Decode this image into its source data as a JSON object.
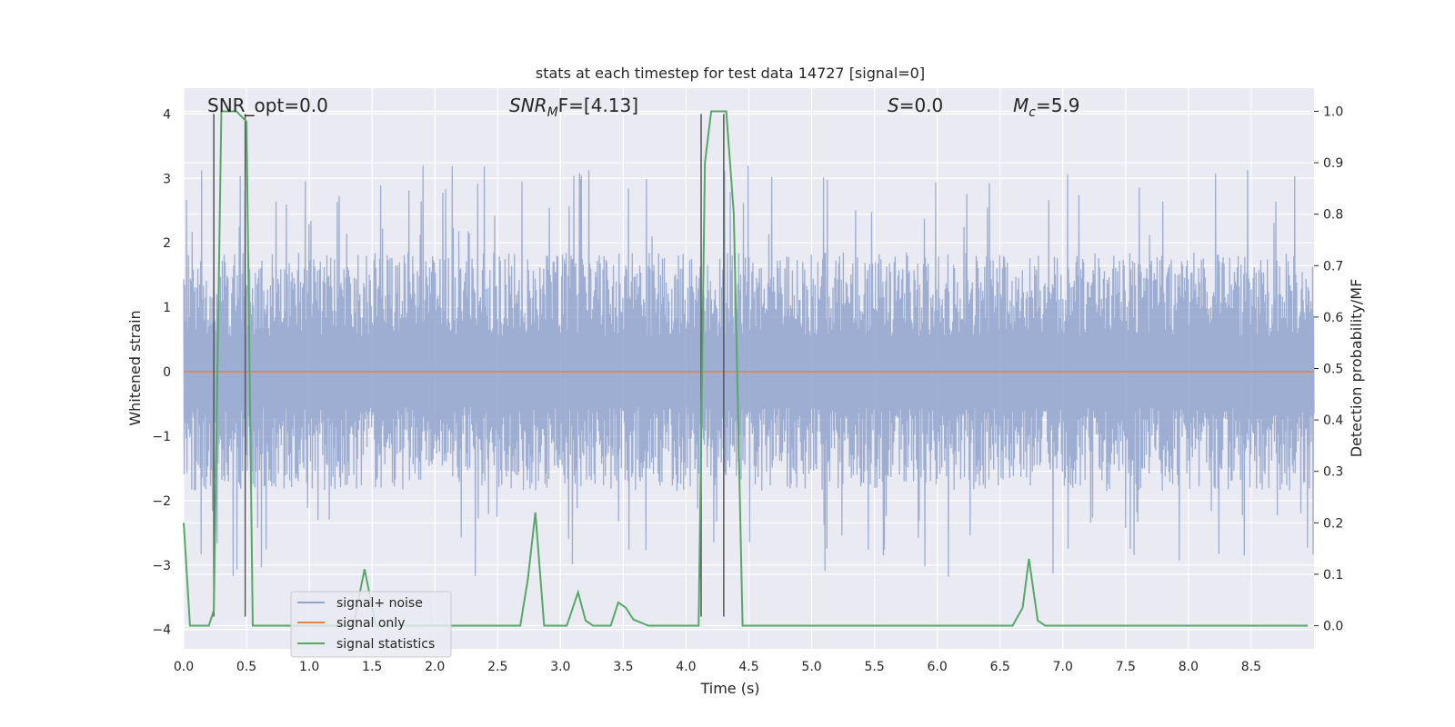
{
  "chart_data": {
    "type": "line",
    "title": "stats at each timestep for test data 14727 [signal=0]",
    "xlabel": "Time (s)",
    "ylabel": "Whitened strain",
    "ylabel_right": "Detection probability/MF",
    "xlim": [
      0,
      9.0
    ],
    "ylim": [
      -4.3,
      4.4
    ],
    "ylim_right": [
      -0.045,
      1.045
    ],
    "x_ticks": [
      "0.0",
      "0.5",
      "1.0",
      "1.5",
      "2.0",
      "2.5",
      "3.0",
      "3.5",
      "4.0",
      "4.5",
      "5.0",
      "5.5",
      "6.0",
      "6.5",
      "7.0",
      "7.5",
      "8.0",
      "8.5"
    ],
    "y_ticks": [
      "4",
      "3",
      "2",
      "1",
      "0",
      "−1",
      "−2",
      "−3",
      "−4"
    ],
    "y_ticks_right": [
      "1.0",
      "0.9",
      "0.8",
      "0.7",
      "0.6",
      "0.5",
      "0.4",
      "0.3",
      "0.2",
      "0.1",
      "0.0"
    ],
    "grid": true,
    "legend_position": "lower-left",
    "annotations": {
      "snr_opt": "SNR_opt=0.0",
      "snr_mf_base": "SNR",
      "snr_mf_sub": "M",
      "snr_mf_rest": "F=[4.13]",
      "s_italic": "S",
      "s_rest": "=0.0",
      "mc_base": "M",
      "mc_sub": "c",
      "mc_rest": "=5.9"
    },
    "vertical_lines_x": [
      0.24,
      0.49,
      4.12,
      4.3
    ],
    "vertical_lines_ymax": 4.0,
    "vertical_lines_ymin": -3.8,
    "series": [
      {
        "name": "signal+ noise",
        "color": "#8fa3cc",
        "typical_amplitude": 1.6,
        "max_peak": 4.0,
        "min_trough": -3.8
      },
      {
        "name": "signal only",
        "color": "#dd8452",
        "x": [
          0.0,
          9.0
        ],
        "y": [
          0.0,
          0.0
        ]
      },
      {
        "name": "signal statistics",
        "color": "#55a868",
        "axis": "right",
        "x": [
          0.0,
          0.05,
          0.2,
          0.24,
          0.3,
          0.42,
          0.5,
          0.55,
          1.0,
          1.35,
          1.44,
          1.53,
          2.0,
          2.68,
          2.74,
          2.8,
          2.87,
          3.05,
          3.14,
          3.2,
          3.26,
          3.4,
          3.46,
          3.52,
          3.58,
          3.7,
          3.8,
          4.0,
          4.1,
          4.15,
          4.2,
          4.32,
          4.38,
          4.45,
          5.0,
          6.0,
          6.6,
          6.68,
          6.73,
          6.8,
          6.86,
          7.0,
          8.0,
          8.95
        ],
        "y": [
          0.2,
          0.0,
          0.0,
          0.03,
          1.0,
          1.0,
          0.98,
          0.0,
          0.0,
          0.0,
          0.11,
          0.0,
          0.0,
          0.0,
          0.09,
          0.22,
          0.0,
          0.0,
          0.065,
          0.01,
          0.0,
          0.0,
          0.045,
          0.035,
          0.012,
          0.0,
          0.0,
          0.0,
          0.0,
          0.9,
          1.0,
          1.0,
          0.8,
          0.0,
          0.0,
          0.0,
          0.0,
          0.035,
          0.13,
          0.01,
          0.0,
          0.0,
          0.0,
          0.0
        ]
      }
    ]
  }
}
